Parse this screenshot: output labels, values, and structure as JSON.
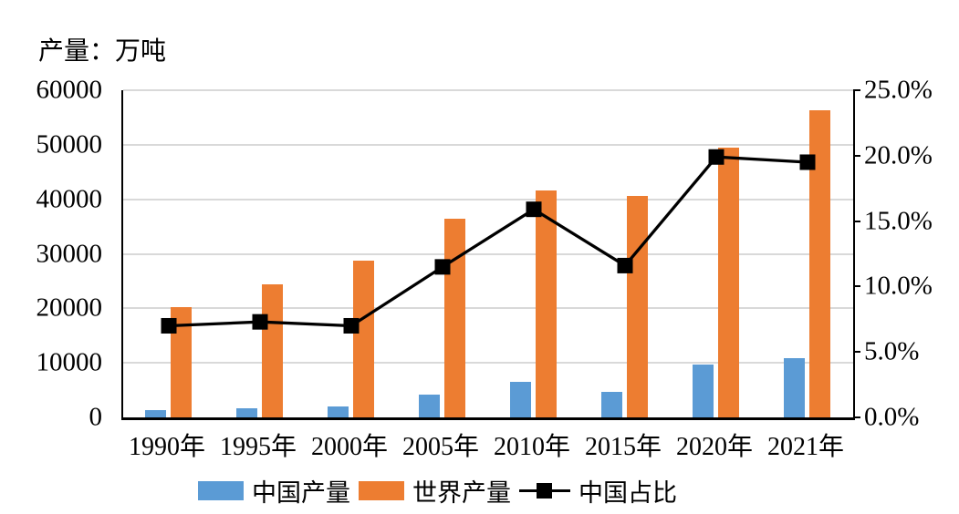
{
  "chart_data": {
    "type": "bar",
    "combo": "bars with secondary-axis line",
    "title": "产量：万吨",
    "categories": [
      "1990年",
      "1995年",
      "2000年",
      "2005年",
      "2010年",
      "2015年",
      "2020年",
      "2021年"
    ],
    "series": [
      {
        "name": "中国产量",
        "kind": "bar",
        "axis": "left",
        "color": "#5B9BD5",
        "values": [
          1400,
          1750,
          2000,
          4200,
          6600,
          4700,
          9700,
          10800
        ]
      },
      {
        "name": "世界产量",
        "kind": "bar",
        "axis": "left",
        "color": "#ED7D31",
        "values": [
          20300,
          24400,
          28700,
          36500,
          41600,
          40600,
          49400,
          56300
        ]
      },
      {
        "name": "中国占比",
        "kind": "line",
        "axis": "right",
        "color": "#000000",
        "values": [
          7.0,
          7.3,
          7.0,
          11.5,
          15.9,
          11.6,
          19.9,
          19.5
        ],
        "unit": "%"
      }
    ],
    "left_axis": {
      "min": 0,
      "max": 60000,
      "step": 10000,
      "ticks": [
        "0",
        "10000",
        "20000",
        "30000",
        "40000",
        "50000",
        "60000"
      ]
    },
    "right_axis": {
      "min": 0,
      "max": 25,
      "step": 5,
      "ticks": [
        "0.0%",
        "5.0%",
        "10.0%",
        "15.0%",
        "20.0%",
        "25.0%"
      ]
    },
    "grid": "horizontal",
    "gridline_color": "#D9D9D9",
    "axis_color": "#000000",
    "legend_position": "bottom"
  }
}
